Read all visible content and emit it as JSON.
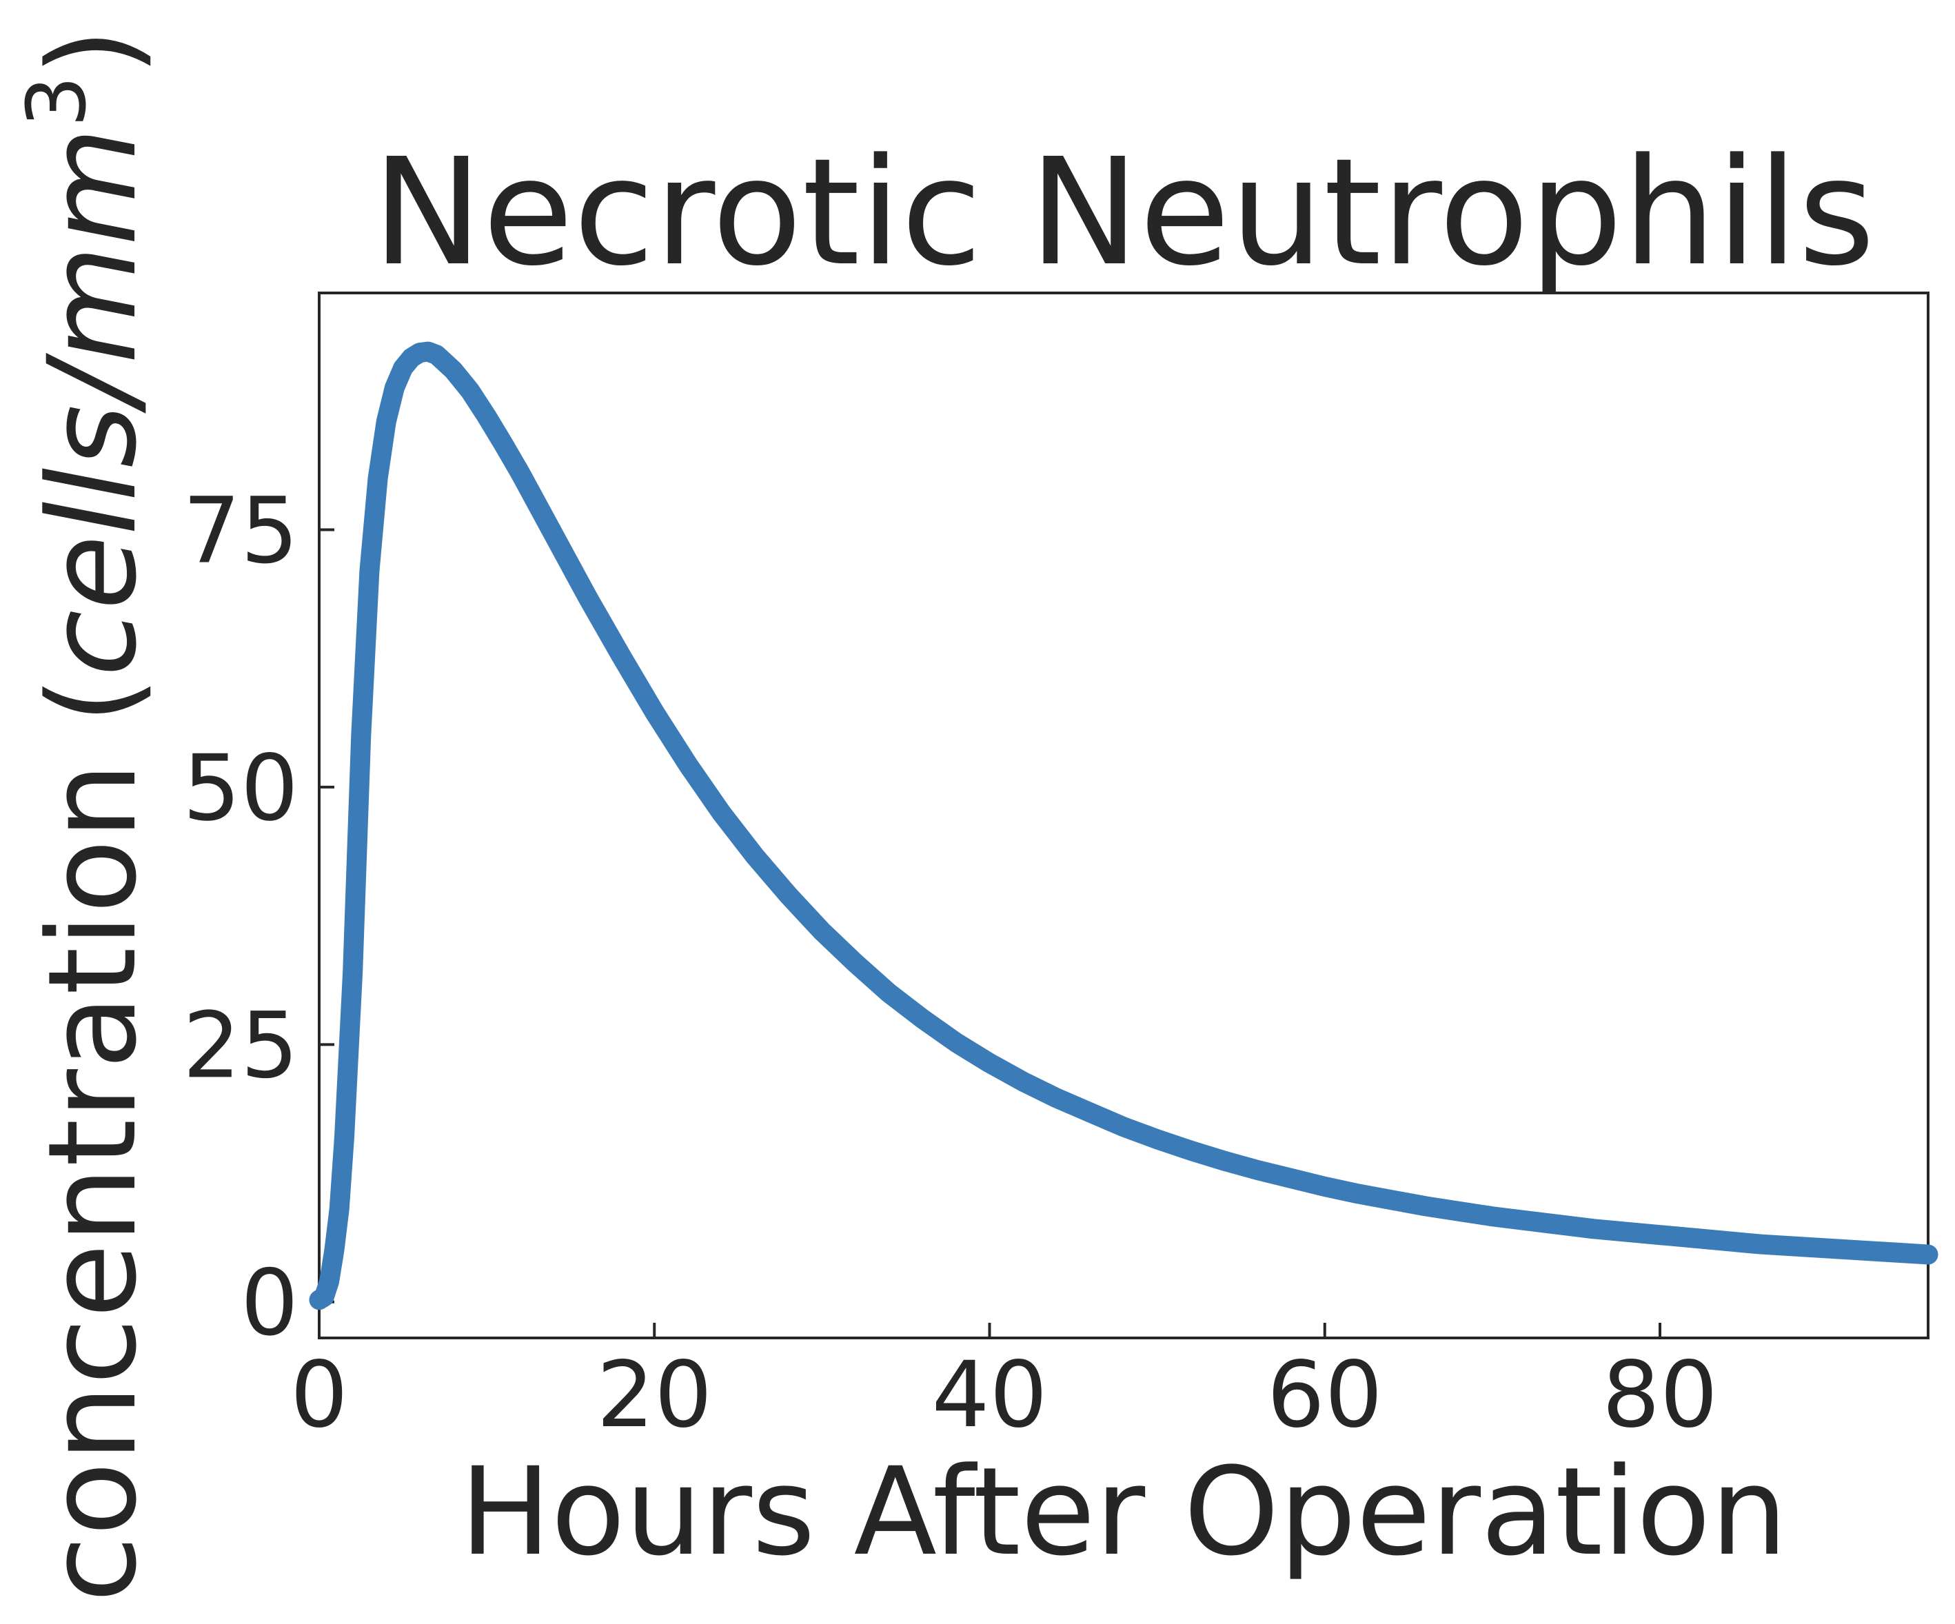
{
  "chart_data": {
    "type": "line",
    "title": "Necrotic Neutrophils",
    "xlabel": "Hours After Operation",
    "ylabel_main": "concentration (",
    "ylabel_italic": "cells/mm",
    "ylabel_sup": "3",
    "ylabel_close": ")",
    "xlim": [
      0,
      96
    ],
    "ylim": [
      -3.5,
      98
    ],
    "xticks": [
      0,
      20,
      40,
      60,
      80
    ],
    "yticks": [
      0,
      25,
      50,
      75
    ],
    "x_tick_labels": [
      "0",
      "20",
      "40",
      "60",
      "80"
    ],
    "y_tick_labels": [
      "0",
      "25",
      "50",
      "75"
    ],
    "grid": false,
    "line_color": "#3a7bb8",
    "series": [
      {
        "x": [
          0,
          0.3,
          0.6,
          0.9,
          1.2,
          1.5,
          2.0,
          2.5,
          3.0,
          3.5,
          4.0,
          4.5,
          5.0,
          5.5,
          6.0,
          6.5,
          7.0,
          8.0,
          9.0,
          10.0,
          11.0,
          12.0,
          14.0,
          16.0,
          18.0,
          20.0,
          22.0,
          24.0,
          26.0,
          28.0,
          30.0,
          32.0,
          34.0,
          36.0,
          38.0,
          40.0,
          42.0,
          44.0,
          46.0,
          48.0,
          50.0,
          52.0,
          54.0,
          56.0,
          58.0,
          60.0,
          62.0,
          64.0,
          66.0,
          68.0,
          70.0,
          72.0,
          74.0,
          76.0,
          78.0,
          80.0,
          82.0,
          84.0,
          86.0,
          88.0,
          90.0,
          92.0,
          94.0,
          96.0
        ],
        "values": [
          0.2,
          0.5,
          2.0,
          5.0,
          9.0,
          16.0,
          32.0,
          55.0,
          71.0,
          80.0,
          85.5,
          88.8,
          90.7,
          91.7,
          92.2,
          92.3,
          92.0,
          90.5,
          88.5,
          86.0,
          83.3,
          80.5,
          74.5,
          68.5,
          62.8,
          57.3,
          52.2,
          47.5,
          43.3,
          39.5,
          36.0,
          32.9,
          30.0,
          27.5,
          25.2,
          23.2,
          21.4,
          19.8,
          18.4,
          17.0,
          15.8,
          14.7,
          13.7,
          12.8,
          12.0,
          11.2,
          10.5,
          9.9,
          9.3,
          8.8,
          8.3,
          7.9,
          7.5,
          7.1,
          6.8,
          6.5,
          6.2,
          5.9,
          5.6,
          5.4,
          5.2,
          5.0,
          4.8,
          4.6
        ]
      }
    ]
  }
}
